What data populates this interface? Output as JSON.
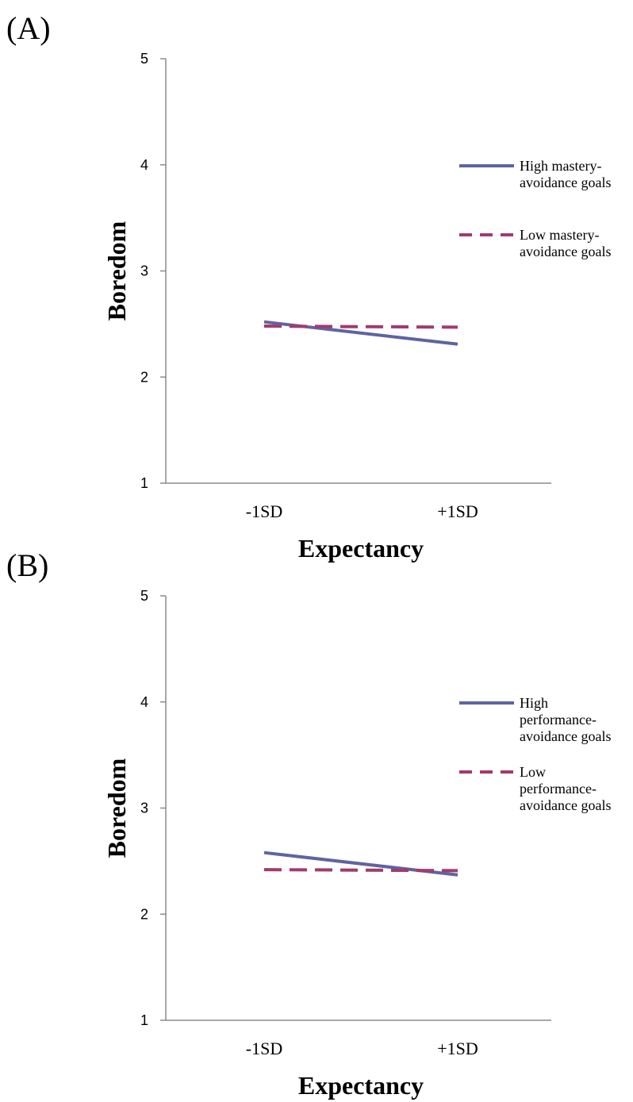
{
  "chart_data": [
    {
      "type": "line",
      "panel_label": "(A)",
      "categories": [
        "-1SD",
        "+1SD"
      ],
      "xlabel": "Expectancy",
      "ylabel": "Boredom",
      "ylim": [
        1,
        5
      ],
      "yticks": [
        "1",
        "2",
        "3",
        "4",
        "5"
      ],
      "legend_position": "right",
      "grid": false,
      "series": [
        {
          "name_lines": [
            "High mastery-",
            "avoidance goals"
          ],
          "values": [
            2.52,
            2.31
          ],
          "color": "#5F64A0",
          "style": "solid"
        },
        {
          "name_lines": [
            "Low mastery-",
            "avoidance goals"
          ],
          "values": [
            2.48,
            2.47
          ],
          "color": "#A33A6E",
          "style": "dashed"
        }
      ]
    },
    {
      "type": "line",
      "panel_label": "(B)",
      "categories": [
        "-1SD",
        "+1SD"
      ],
      "xlabel": "Expectancy",
      "ylabel": "Boredom",
      "ylim": [
        1,
        5
      ],
      "yticks": [
        "1",
        "2",
        "3",
        "4",
        "5"
      ],
      "legend_position": "right",
      "grid": false,
      "series": [
        {
          "name_lines": [
            "High",
            "performance-",
            "avoidance goals"
          ],
          "values": [
            2.58,
            2.37
          ],
          "color": "#5F64A0",
          "style": "solid"
        },
        {
          "name_lines": [
            "Low",
            "performance-",
            "avoidance goals"
          ],
          "values": [
            2.42,
            2.41
          ],
          "color": "#A33A6E",
          "style": "dashed"
        }
      ]
    }
  ]
}
